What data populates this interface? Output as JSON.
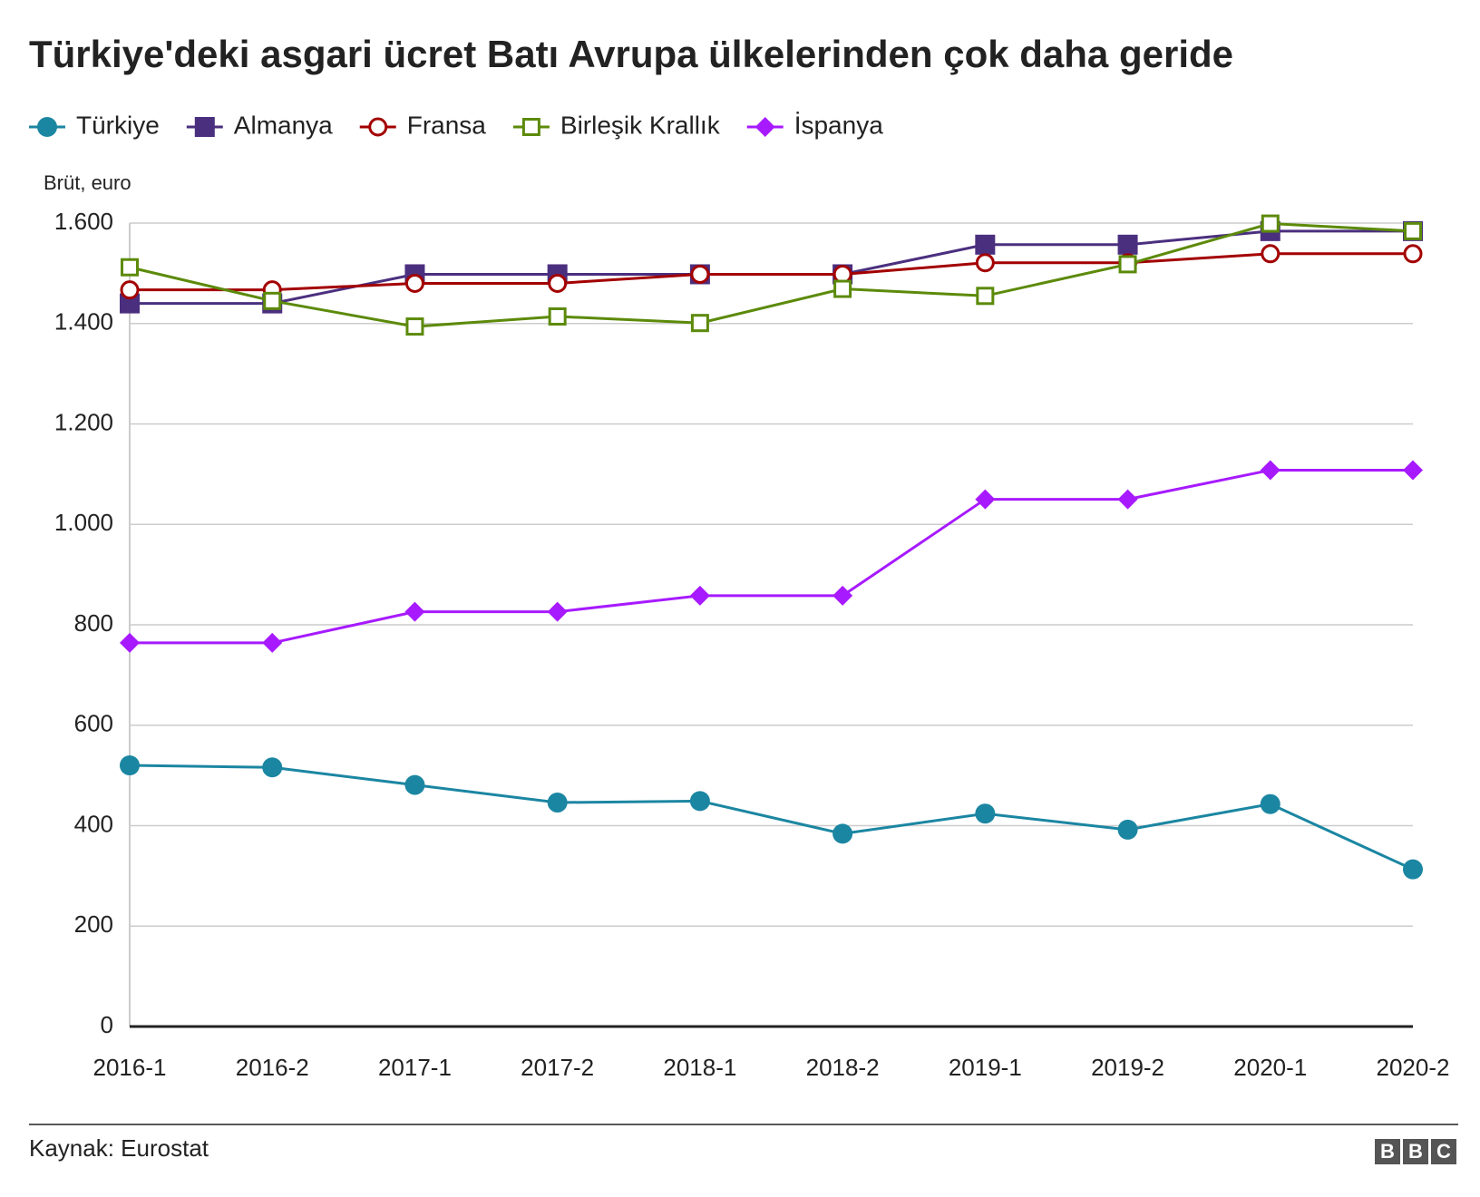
{
  "chart_data": {
    "type": "line",
    "title": "Türkiye'deki asgari ücret Batı Avrupa ülkelerinden çok daha geride",
    "y_axis_label": "Brüt, euro",
    "source": "Kaynak: Eurostat",
    "logo": [
      "B",
      "B",
      "C"
    ],
    "categories": [
      "2016-1",
      "2016-2",
      "2017-1",
      "2017-2",
      "2018-1",
      "2018-2",
      "2019-1",
      "2019-2",
      "2020-1",
      "2020-2"
    ],
    "series": [
      {
        "name": "Türkiye",
        "color": "#1b86a2",
        "marker": "circle",
        "values": [
          520,
          516,
          481,
          446,
          449,
          384,
          424,
          392,
          443,
          313
        ]
      },
      {
        "name": "Almanya",
        "color": "#4b2f7f",
        "marker": "square",
        "values": [
          1440,
          1440,
          1498,
          1498,
          1498,
          1498,
          1557,
          1557,
          1584,
          1584
        ]
      },
      {
        "name": "Fransa",
        "color": "#a30000",
        "marker": "circle-open",
        "values": [
          1467,
          1467,
          1480,
          1480,
          1498,
          1498,
          1521,
          1521,
          1539,
          1539
        ]
      },
      {
        "name": "Birleşik Krallık",
        "color": "#5c8a0a",
        "marker": "square-open",
        "values": [
          1512,
          1445,
          1394,
          1414,
          1401,
          1469,
          1455,
          1518,
          1599,
          1584
        ]
      },
      {
        "name": "İspanya",
        "color": "#a71aff",
        "marker": "diamond",
        "values": [
          764,
          764,
          826,
          826,
          858,
          858,
          1050,
          1050,
          1108,
          1108
        ]
      }
    ],
    "ylim": [
      0,
      1600
    ],
    "yticks": [
      0,
      200,
      400,
      600,
      800,
      {
        "value": 1000,
        "label": "1.000"
      },
      {
        "value": 1200,
        "label": "1.200"
      },
      {
        "value": 1400,
        "label": "1.400"
      },
      {
        "value": 1600,
        "label": "1.600"
      }
    ],
    "grid": true
  }
}
